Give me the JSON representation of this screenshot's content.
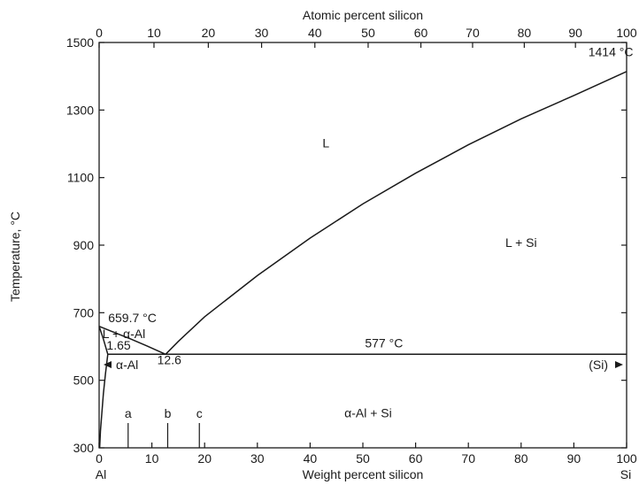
{
  "chart_data": {
    "type": "phase-diagram",
    "xlabel_bottom": "Weight percent silicon",
    "xlabel_top": "Atomic percent silicon",
    "ylabel": "Temperature, °C",
    "xlim": [
      0,
      100
    ],
    "ylim": [
      300,
      1500
    ],
    "bottom_ticks": [
      {
        "value": 0,
        "label": "0"
      },
      {
        "value": 10,
        "label": "10"
      },
      {
        "value": 20,
        "label": "20"
      },
      {
        "value": 30,
        "label": "30"
      },
      {
        "value": 40,
        "label": "40"
      },
      {
        "value": 50,
        "label": "50"
      },
      {
        "value": 60,
        "label": "60"
      },
      {
        "value": 70,
        "label": "70"
      },
      {
        "value": 80,
        "label": "80"
      },
      {
        "value": 90,
        "label": "90"
      },
      {
        "value": 100,
        "label": "100"
      }
    ],
    "top_ticks": [
      {
        "wt": 0,
        "label": "0"
      },
      {
        "wt": 10.4,
        "label": "10"
      },
      {
        "wt": 20.7,
        "label": "20"
      },
      {
        "wt": 30.8,
        "label": "30"
      },
      {
        "wt": 40.9,
        "label": "40"
      },
      {
        "wt": 51.0,
        "label": "50"
      },
      {
        "wt": 61.0,
        "label": "60"
      },
      {
        "wt": 70.8,
        "label": "70"
      },
      {
        "wt": 80.6,
        "label": "80"
      },
      {
        "wt": 90.3,
        "label": "90"
      },
      {
        "wt": 100,
        "label": "100"
      }
    ],
    "y_ticks": [
      {
        "value": 300,
        "label": "300"
      },
      {
        "value": 500,
        "label": "500"
      },
      {
        "value": 700,
        "label": "700"
      },
      {
        "value": 900,
        "label": "900"
      },
      {
        "value": 1100,
        "label": "1100"
      },
      {
        "value": 1300,
        "label": "1300"
      },
      {
        "value": 1500,
        "label": "1500"
      }
    ],
    "element_labels": {
      "left": "Al",
      "right": "Si"
    },
    "curves": {
      "liquidus_al": [
        [
          0,
          659.7
        ],
        [
          3,
          641
        ],
        [
          6,
          622
        ],
        [
          9,
          602
        ],
        [
          12.6,
          577
        ]
      ],
      "liquidus_si": [
        [
          12.6,
          577
        ],
        [
          15,
          615
        ],
        [
          20,
          688
        ],
        [
          30,
          810
        ],
        [
          40,
          921
        ],
        [
          50,
          1022
        ],
        [
          60,
          1113
        ],
        [
          70,
          1197
        ],
        [
          80,
          1274
        ],
        [
          90,
          1343
        ],
        [
          100,
          1414
        ]
      ],
      "solidus": [
        [
          0,
          659.7
        ],
        [
          0.8,
          622
        ],
        [
          1.65,
          577
        ]
      ],
      "solvus": [
        [
          1.65,
          577
        ],
        [
          1.2,
          520
        ],
        [
          0.8,
          460
        ],
        [
          0.5,
          400
        ],
        [
          0.25,
          350
        ],
        [
          0.1,
          300
        ]
      ],
      "eutectic": {
        "x0": 1.65,
        "x1": 100,
        "temp": 577
      }
    },
    "region_labels": [
      {
        "text": "L",
        "x": 43,
        "y": 1190
      },
      {
        "text": "L + Si",
        "x": 80,
        "y": 895
      },
      {
        "text": "L + α-Al",
        "x": 4.7,
        "y": 625
      },
      {
        "text": "α-Al + Si",
        "x": 51,
        "y": 390
      }
    ],
    "annotations": [
      {
        "text": "1414 °C",
        "x": 97,
        "y": 1459
      },
      {
        "text": "659.7 °C",
        "x": 6.3,
        "y": 672
      },
      {
        "text": "1.65",
        "x": 3.7,
        "y": 591
      },
      {
        "text": "12.6",
        "x": 13.3,
        "y": 548
      },
      {
        "text": "577 °C",
        "x": 54,
        "y": 598
      }
    ],
    "phase_arrows": {
      "alpha_al": "α-Al",
      "si": "(Si)"
    },
    "markers": [
      {
        "label": "a",
        "x": 5.5
      },
      {
        "label": "b",
        "x": 13
      },
      {
        "label": "c",
        "x": 19
      }
    ]
  }
}
